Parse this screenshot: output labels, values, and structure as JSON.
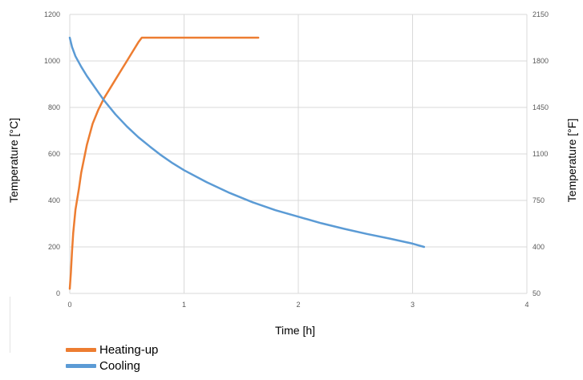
{
  "chart_data": {
    "type": "line",
    "xlabel": "Time [h]",
    "ylabel": "Temperature [°C]",
    "y2label": "Temperature [°F]",
    "xlim": [
      0,
      4
    ],
    "ylim": [
      0,
      1200
    ],
    "y2lim": [
      50,
      2150
    ],
    "x_ticks": [
      "0",
      "1",
      "2",
      "3",
      "4"
    ],
    "y_ticks": [
      "0",
      "200",
      "400",
      "600",
      "800",
      "1000",
      "1200"
    ],
    "y2_ticks": [
      "50",
      "400",
      "750",
      "1100",
      "1450",
      "1800",
      "2150"
    ],
    "grid": true,
    "legend_position": "bottom-left",
    "series": [
      {
        "name": "Heating-up",
        "color": "#ED7D31",
        "x": [
          0.0,
          0.01,
          0.02,
          0.03,
          0.05,
          0.08,
          0.1,
          0.15,
          0.2,
          0.25,
          0.3,
          0.35,
          0.4,
          0.45,
          0.5,
          0.55,
          0.6,
          0.63,
          0.7,
          0.9,
          1.1,
          1.3,
          1.5,
          1.65
        ],
        "y": [
          20,
          90,
          180,
          260,
          360,
          450,
          520,
          640,
          730,
          790,
          840,
          880,
          920,
          960,
          1000,
          1040,
          1080,
          1100,
          1100,
          1100,
          1100,
          1100,
          1100,
          1100
        ]
      },
      {
        "name": "Cooling",
        "color": "#5B9BD5",
        "x": [
          0.0,
          0.02,
          0.05,
          0.1,
          0.15,
          0.2,
          0.25,
          0.3,
          0.4,
          0.5,
          0.6,
          0.7,
          0.8,
          0.9,
          1.0,
          1.2,
          1.4,
          1.6,
          1.8,
          2.0,
          2.2,
          2.4,
          2.6,
          2.8,
          3.0,
          3.1
        ],
        "y": [
          1100,
          1060,
          1020,
          975,
          935,
          900,
          865,
          830,
          770,
          718,
          672,
          632,
          594,
          560,
          530,
          478,
          432,
          392,
          358,
          330,
          302,
          278,
          256,
          236,
          214,
          200
        ]
      }
    ]
  }
}
